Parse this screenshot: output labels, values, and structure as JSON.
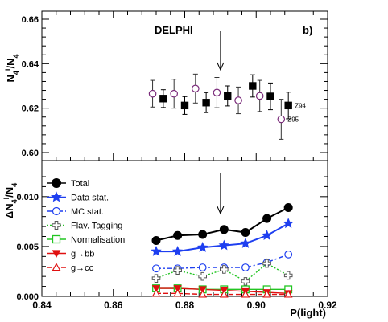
{
  "chart_data": [
    {
      "panel": "top",
      "type": "scatter",
      "experiment_label": "DELPHI",
      "panel_label": "b)",
      "ylabel": "N4^l/N4",
      "xlim": [
        0.84,
        0.92
      ],
      "ylim": [
        0.6,
        0.66
      ],
      "yticks": [
        "0.60",
        "0.62",
        "0.64",
        "0.66"
      ],
      "arrow_x": 0.89,
      "series": [
        {
          "name": "Z94",
          "marker": "filled-square",
          "color": "#000000",
          "points": [
            {
              "x": 0.874,
              "y": 0.6243,
              "err": 0.004
            },
            {
              "x": 0.88,
              "y": 0.6212,
              "err": 0.004
            },
            {
              "x": 0.886,
              "y": 0.6225,
              "err": 0.0045
            },
            {
              "x": 0.892,
              "y": 0.6255,
              "err": 0.0045
            },
            {
              "x": 0.899,
              "y": 0.63,
              "err": 0.005
            },
            {
              "x": 0.904,
              "y": 0.6253,
              "err": 0.006
            },
            {
              "x": 0.909,
              "y": 0.6212,
              "err": 0.006
            }
          ]
        },
        {
          "name": "Z95",
          "marker": "open-circle",
          "color": "#7a2a7a",
          "points": [
            {
              "x": 0.871,
              "y": 0.6265,
              "err": 0.006
            },
            {
              "x": 0.877,
              "y": 0.6265,
              "err": 0.0065
            },
            {
              "x": 0.883,
              "y": 0.6288,
              "err": 0.0065
            },
            {
              "x": 0.889,
              "y": 0.627,
              "err": 0.0068
            },
            {
              "x": 0.895,
              "y": 0.6235,
              "err": 0.006
            },
            {
              "x": 0.901,
              "y": 0.6255,
              "err": 0.007
            },
            {
              "x": 0.907,
              "y": 0.615,
              "err": 0.009
            }
          ]
        }
      ]
    },
    {
      "panel": "bottom",
      "type": "line",
      "ylabel": "ΔN4^l/N4",
      "xlabel": "P(light)",
      "xlim": [
        0.84,
        0.92
      ],
      "ylim": [
        0.0,
        0.012
      ],
      "xticks": [
        "0.84",
        "0.86",
        "0.88",
        "0.90",
        "0.92"
      ],
      "yticks": [
        "0.000",
        "0.005",
        "0.010"
      ],
      "arrow_x": 0.89,
      "x": [
        0.872,
        0.878,
        0.885,
        0.891,
        0.897,
        0.903,
        0.909
      ],
      "series": [
        {
          "name": "Total",
          "marker": "filled-circle",
          "color": "#000000",
          "dash": "none",
          "values": [
            0.0056,
            0.0061,
            0.0062,
            0.0067,
            0.0064,
            0.0078,
            0.0089
          ]
        },
        {
          "name": "Data stat.",
          "marker": "star",
          "color": "#1e3ff0",
          "dash": "none",
          "values": [
            0.0045,
            0.0045,
            0.0049,
            0.0051,
            0.0053,
            0.0061,
            0.0073
          ]
        },
        {
          "name": "MC stat.",
          "marker": "open-circle",
          "color": "#1e3ff0",
          "dash": "6 3 2 3",
          "values": [
            0.0028,
            0.0028,
            0.0029,
            0.0029,
            0.0029,
            0.0034,
            0.0042
          ]
        },
        {
          "name": "Flav. Tagging",
          "marker": "open-cross",
          "color": "#22c522",
          "dash": "2 2",
          "values": [
            0.0018,
            0.0026,
            0.002,
            0.0027,
            0.0015,
            0.0033,
            0.0021
          ]
        },
        {
          "name": "Normalisation",
          "marker": "open-square",
          "color": "#22c522",
          "dash": "none",
          "values": [
            0.0008,
            0.0008,
            0.0007,
            0.0007,
            0.0007,
            0.0007,
            0.0007
          ]
        },
        {
          "name": "g→bb",
          "marker": "filled-triangle-down",
          "color": "#e01010",
          "dash": "none",
          "values": [
            0.0008,
            0.0008,
            0.0007,
            0.0006,
            0.0005,
            0.0004,
            0.0003
          ]
        },
        {
          "name": "g→cc",
          "marker": "open-triangle-up",
          "color": "#e01010",
          "dash": "6 3",
          "values": [
            0.0003,
            0.0003,
            0.0002,
            0.0002,
            0.0002,
            0.0002,
            0.0002
          ]
        }
      ]
    }
  ]
}
